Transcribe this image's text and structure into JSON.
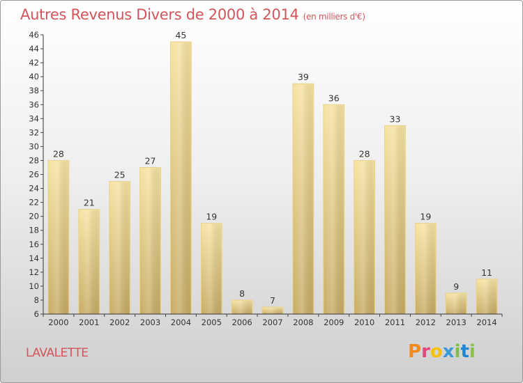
{
  "header": {
    "title": "Autres Revenus Divers de 2000 à 2014",
    "subtitle": "(en milliers d'€)"
  },
  "footer": {
    "place": "LAVALETTE",
    "logo_text": "Proxiti",
    "logo_colors": [
      "#f28a1e",
      "#e8457a",
      "#f5c20a",
      "#3a9ad9",
      "#7cc242",
      "#1e88d8",
      "#8bc34a"
    ]
  },
  "colors": {
    "title": "#d2555a",
    "bar_light": "#f7e3a3",
    "bar_dark": "#c8ad67",
    "bar_edge": "#e6cf8a",
    "axis": "#333333",
    "grid_tick": "#444444"
  },
  "chart_data": {
    "type": "bar",
    "categories": [
      "2000",
      "2001",
      "2002",
      "2003",
      "2004",
      "2005",
      "2006",
      "2007",
      "2008",
      "2009",
      "2010",
      "2011",
      "2012",
      "2013",
      "2014"
    ],
    "values": [
      28,
      21,
      25,
      27,
      45,
      19,
      8,
      7,
      39,
      36,
      28,
      33,
      19,
      9,
      11
    ],
    "ylim": [
      6,
      46
    ],
    "yticks": [
      6,
      8,
      10,
      12,
      14,
      16,
      18,
      20,
      22,
      24,
      26,
      28,
      30,
      32,
      34,
      36,
      38,
      40,
      42,
      44,
      46
    ],
    "grid": false,
    "data_labels": true
  }
}
